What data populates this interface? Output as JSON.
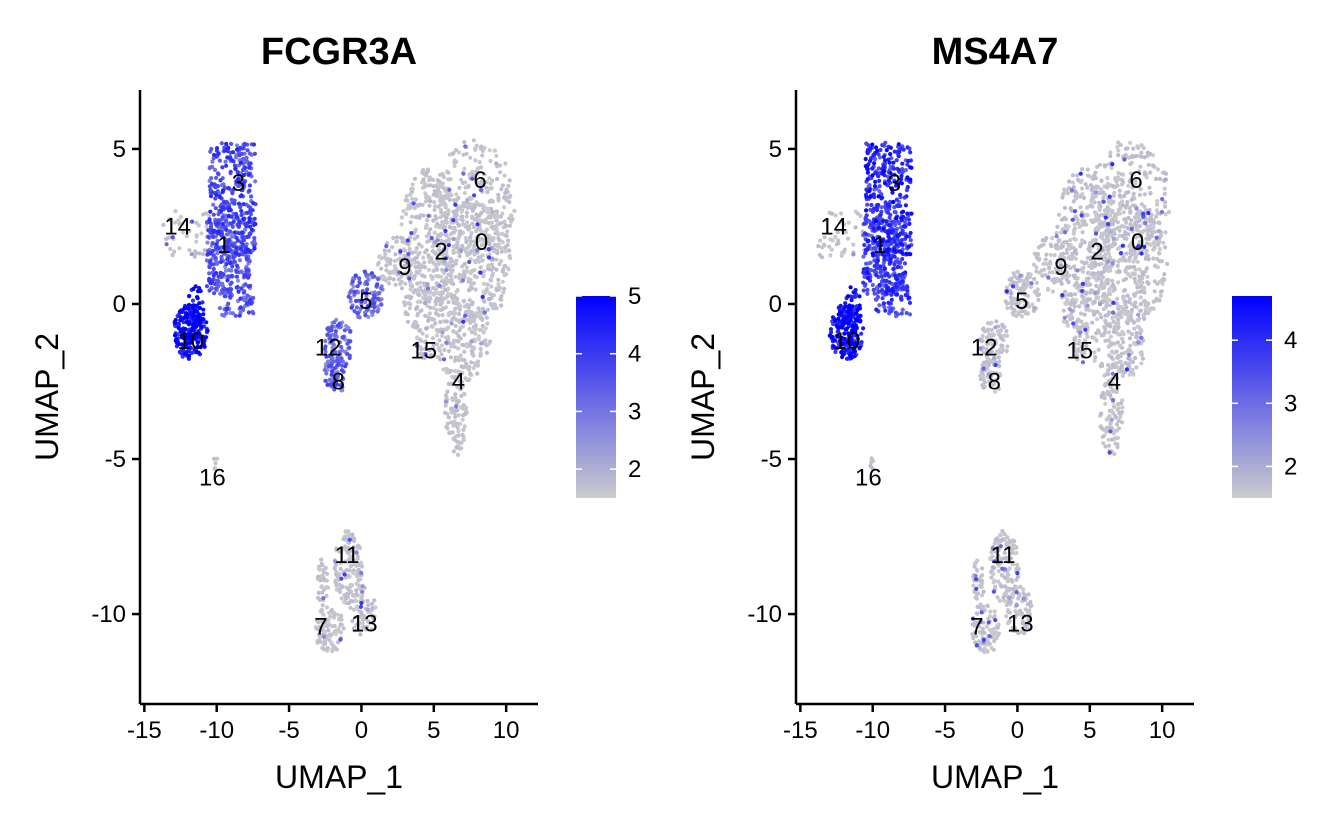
{
  "chart_data": [
    {
      "type": "scatter",
      "title": "FCGR3A",
      "xlabel": "UMAP_1",
      "ylabel": "UMAP_2",
      "xlim": [
        -15.3,
        12.2
      ],
      "ylim": [
        -12.9,
        6.9
      ],
      "xticks": [
        -15,
        -10,
        -5,
        0,
        5,
        10
      ],
      "yticks": [
        -10,
        -5,
        0,
        5
      ],
      "xtick_labels": [
        "-15",
        "-10",
        "-5",
        "0",
        "5",
        "10"
      ],
      "ytick_labels": [
        "-10",
        "-5",
        "0",
        "5"
      ],
      "grid": false,
      "legend": {
        "placement": "right",
        "type": "colorbar",
        "min": 1.5,
        "max": 5,
        "ticks": [
          2,
          3,
          4,
          5
        ],
        "tick_labels": [
          "2",
          "3",
          "4",
          "5"
        ],
        "low_color": "#cccccc",
        "high_color": "#0000ff"
      },
      "cluster_labels": [
        {
          "label": "0",
          "x": 8.3,
          "y": 2.0
        },
        {
          "label": "1",
          "x": -9.5,
          "y": 1.9
        },
        {
          "label": "2",
          "x": 5.5,
          "y": 1.7
        },
        {
          "label": "3",
          "x": -8.5,
          "y": 3.9
        },
        {
          "label": "4",
          "x": 6.7,
          "y": -2.5
        },
        {
          "label": "5",
          "x": 0.3,
          "y": 0.1
        },
        {
          "label": "6",
          "x": 8.2,
          "y": 4.0
        },
        {
          "label": "7",
          "x": -2.8,
          "y": -10.4
        },
        {
          "label": "8",
          "x": -1.6,
          "y": -2.5
        },
        {
          "label": "9",
          "x": 3.0,
          "y": 1.2
        },
        {
          "label": "10",
          "x": -11.8,
          "y": -1.2
        },
        {
          "label": "11",
          "x": -1.0,
          "y": -8.1
        },
        {
          "label": "12",
          "x": -2.3,
          "y": -1.4
        },
        {
          "label": "13",
          "x": 0.2,
          "y": -10.3
        },
        {
          "label": "14",
          "x": -12.7,
          "y": 2.5
        },
        {
          "label": "15",
          "x": 4.3,
          "y": -1.5
        },
        {
          "label": "16",
          "x": -10.3,
          "y": -5.6
        }
      ],
      "expression_by_cluster": {
        "0": 1.6,
        "1": 3.4,
        "2": 1.6,
        "3": 3.6,
        "4": 1.7,
        "5": 3.2,
        "6": 1.6,
        "7": 1.8,
        "8": 3.2,
        "9": 1.8,
        "10": 4.7,
        "11": 1.7,
        "12": 3.0,
        "13": 1.6,
        "14": 1.9,
        "15": 1.6,
        "16": 1.6
      }
    },
    {
      "type": "scatter",
      "title": "MS4A7",
      "xlabel": "UMAP_1",
      "ylabel": "UMAP_2",
      "xlim": [
        -15.3,
        12.2
      ],
      "ylim": [
        -12.9,
        6.9
      ],
      "xticks": [
        -15,
        -10,
        -5,
        0,
        5,
        10
      ],
      "yticks": [
        -10,
        -5,
        0,
        5
      ],
      "xtick_labels": [
        "-15",
        "-10",
        "-5",
        "0",
        "5",
        "10"
      ],
      "ytick_labels": [
        "-10",
        "-5",
        "0",
        "5"
      ],
      "grid": false,
      "legend": {
        "placement": "right",
        "type": "colorbar",
        "min": 1.5,
        "max": 4.7,
        "ticks": [
          2,
          3,
          4
        ],
        "tick_labels": [
          "2",
          "3",
          "4"
        ],
        "low_color": "#cccccc",
        "high_color": "#0000ff"
      },
      "cluster_labels": [
        {
          "label": "0",
          "x": 8.3,
          "y": 2.0
        },
        {
          "label": "1",
          "x": -9.5,
          "y": 1.9
        },
        {
          "label": "2",
          "x": 5.5,
          "y": 1.7
        },
        {
          "label": "3",
          "x": -8.5,
          "y": 3.9
        },
        {
          "label": "4",
          "x": 6.7,
          "y": -2.5
        },
        {
          "label": "5",
          "x": 0.3,
          "y": 0.1
        },
        {
          "label": "6",
          "x": 8.2,
          "y": 4.0
        },
        {
          "label": "7",
          "x": -2.8,
          "y": -10.4
        },
        {
          "label": "8",
          "x": -1.6,
          "y": -2.5
        },
        {
          "label": "9",
          "x": 3.0,
          "y": 1.2
        },
        {
          "label": "10",
          "x": -11.8,
          "y": -1.2
        },
        {
          "label": "11",
          "x": -1.0,
          "y": -8.1
        },
        {
          "label": "12",
          "x": -2.3,
          "y": -1.4
        },
        {
          "label": "13",
          "x": 0.2,
          "y": -10.3
        },
        {
          "label": "14",
          "x": -12.7,
          "y": 2.5
        },
        {
          "label": "15",
          "x": 4.3,
          "y": -1.5
        },
        {
          "label": "16",
          "x": -10.3,
          "y": -5.6
        }
      ],
      "expression_by_cluster": {
        "0": 1.6,
        "1": 3.6,
        "2": 1.6,
        "3": 3.9,
        "4": 1.6,
        "5": 1.8,
        "6": 1.6,
        "7": 1.8,
        "8": 1.7,
        "9": 1.8,
        "10": 4.3,
        "11": 1.6,
        "12": 1.7,
        "13": 1.6,
        "14": 1.8,
        "15": 1.6,
        "16": 1.6
      }
    }
  ]
}
